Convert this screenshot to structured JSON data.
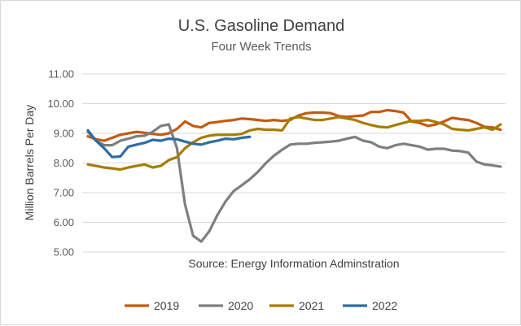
{
  "chart_data": {
    "type": "line",
    "title": "U.S. Gasoline Demand",
    "subtitle": "Four Week Trends",
    "xlabel": "",
    "ylabel": "Million Barrels Per Day",
    "annotation": "Source: Energy Information Adminstration",
    "ylim": [
      5.0,
      11.0
    ],
    "yticks": [
      "5.00",
      "6.00",
      "7.00",
      "8.00",
      "9.00",
      "10.00",
      "11.00"
    ],
    "grid": true,
    "legend_position": "bottom",
    "x_description": "week of year (1-52)",
    "series": [
      {
        "name": "2019",
        "color": "#c55a11",
        "values": [
          8.9,
          8.8,
          8.75,
          8.85,
          8.95,
          9.0,
          9.05,
          9.02,
          8.98,
          8.95,
          9.0,
          9.15,
          9.4,
          9.25,
          9.2,
          9.35,
          9.38,
          9.42,
          9.45,
          9.5,
          9.48,
          9.45,
          9.42,
          9.45,
          9.42,
          9.45,
          9.6,
          9.68,
          9.7,
          9.7,
          9.68,
          9.58,
          9.55,
          9.58,
          9.6,
          9.72,
          9.72,
          9.78,
          9.75,
          9.7,
          9.4,
          9.35,
          9.25,
          9.3,
          9.4,
          9.52,
          9.48,
          9.45,
          9.35,
          9.22,
          9.2,
          9.12
        ]
      },
      {
        "name": "2020",
        "color": "#7f7f7f",
        "values": [
          9.05,
          8.75,
          8.6,
          8.6,
          8.75,
          8.82,
          8.9,
          8.92,
          9.05,
          9.25,
          9.3,
          8.5,
          6.6,
          5.55,
          5.35,
          5.7,
          6.25,
          6.7,
          7.05,
          7.25,
          7.45,
          7.7,
          8.0,
          8.25,
          8.45,
          8.62,
          8.65,
          8.65,
          8.68,
          8.7,
          8.72,
          8.75,
          8.82,
          8.88,
          8.75,
          8.7,
          8.55,
          8.5,
          8.6,
          8.65,
          8.6,
          8.55,
          8.45,
          8.48,
          8.48,
          8.42,
          8.4,
          8.35,
          8.05,
          7.95,
          7.92,
          7.88
        ]
      },
      {
        "name": "2021",
        "color": "#a67c00",
        "values": [
          7.95,
          7.9,
          7.85,
          7.82,
          7.78,
          7.85,
          7.9,
          7.95,
          7.85,
          7.9,
          8.1,
          8.2,
          8.5,
          8.7,
          8.85,
          8.92,
          8.95,
          8.95,
          8.95,
          8.98,
          9.1,
          9.15,
          9.12,
          9.12,
          9.1,
          9.5,
          9.55,
          9.5,
          9.45,
          9.45,
          9.5,
          9.55,
          9.5,
          9.45,
          9.35,
          9.28,
          9.22,
          9.2,
          9.28,
          9.35,
          9.42,
          9.42,
          9.45,
          9.38,
          9.3,
          9.15,
          9.12,
          9.1,
          9.15,
          9.2,
          9.12,
          9.3
        ]
      },
      {
        "name": "2022",
        "color": "#2e6da4",
        "values": [
          9.1,
          8.75,
          8.5,
          8.2,
          8.22,
          8.55,
          8.62,
          8.68,
          8.78,
          8.75,
          8.82,
          8.8,
          8.72,
          8.65,
          8.62,
          8.7,
          8.75,
          8.82,
          8.8,
          8.85,
          8.88
        ]
      }
    ]
  }
}
